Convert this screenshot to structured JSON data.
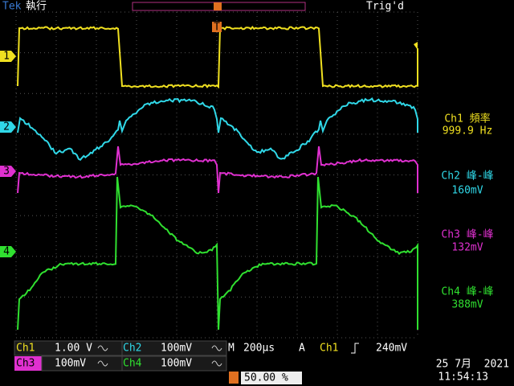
{
  "header": {
    "brand": "Tek",
    "status": "執行",
    "trigger_status": "Trig'd",
    "trigger_marker": "T"
  },
  "channel_markers": [
    "1",
    "2",
    "3",
    "4"
  ],
  "measurements": [
    {
      "label": "Ch1 頻率",
      "value": "999.9 Hz"
    },
    {
      "label": "Ch2 峰-峰",
      "value": "160mV"
    },
    {
      "label": "Ch3 峰-峰",
      "value": "132mV"
    },
    {
      "label": "Ch4 峰-峰",
      "value": "388mV"
    }
  ],
  "footer": {
    "ch1": {
      "name": "Ch1",
      "scale": "1.00 V"
    },
    "ch2": {
      "name": "Ch2",
      "scale": "100mV"
    },
    "ch3": {
      "name": "Ch3",
      "scale": "100mV"
    },
    "ch4": {
      "name": "Ch4",
      "scale": "100mV"
    },
    "timebase": {
      "prefix": "M",
      "value": "200µs"
    },
    "trigger": {
      "mode": "A",
      "source": "Ch1",
      "level": "240mV"
    },
    "trigger_position": "50.00 %",
    "date": "25 7月  2021",
    "time": "11:54:13"
  }
}
